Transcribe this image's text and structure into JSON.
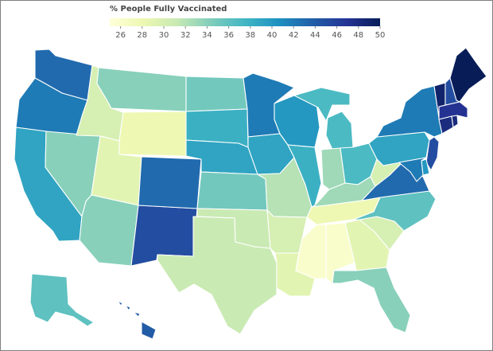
{
  "legend": {
    "title": "% People Fully Vaccinated",
    "min": 25,
    "max": 50,
    "ticks": [
      26,
      28,
      30,
      32,
      34,
      36,
      38,
      40,
      42,
      44,
      46,
      48,
      50
    ],
    "colors": [
      "#ffffd9",
      "#edf8b1",
      "#c7e9b4",
      "#7fcdbb",
      "#41b6c4",
      "#1d91c0",
      "#225ea8",
      "#253494",
      "#081d58"
    ]
  },
  "chart_data": {
    "type": "choropleth",
    "metric": "% People Fully Vaccinated",
    "values": {
      "WA": 43,
      "OR": 42,
      "CA": 39,
      "NV": 34,
      "ID": 30,
      "MT": 34,
      "WY": 28,
      "UT": 29,
      "AZ": 34,
      "NM": 45,
      "CO": 43,
      "ND": 35,
      "SD": 38,
      "NE": 39,
      "KS": 35,
      "OK": 31,
      "TX": 31,
      "MN": 42,
      "IA": 39,
      "MO": 32,
      "AR": 30,
      "LA": 29,
      "WI": 40,
      "IL": 38,
      "MI": 37,
      "IN": 33,
      "OH": 37,
      "KY": 33,
      "TN": 28,
      "MS": 26,
      "AL": 26,
      "GA": 29,
      "FL": 34,
      "SC": 30,
      "NC": 36,
      "VA": 43,
      "WV": 30,
      "PA": 39,
      "NY": 42,
      "NJ": 45,
      "DE": 40,
      "MD": 42,
      "CT": 48,
      "RI": 48,
      "MA": 47,
      "VT": 49,
      "NH": 45,
      "ME": 50,
      "AK": 36,
      "HI": 44
    }
  }
}
